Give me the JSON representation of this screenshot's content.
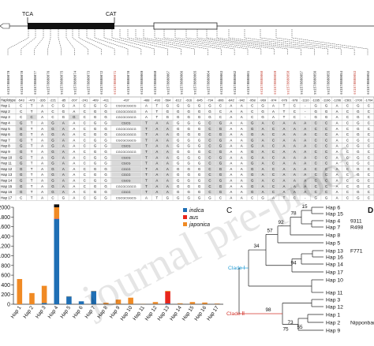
{
  "gene_model": {
    "label_left": "TCA",
    "label_right": "CAT"
  },
  "snp_ids": [
    {
      "id": "ss1578880079",
      "red": false
    },
    {
      "id": "ss1578880078",
      "red": false
    },
    {
      "id": "ss1578880077",
      "red": false
    },
    {
      "id": "ss1578880076",
      "red": false
    },
    {
      "id": "ss1578880075",
      "red": false
    },
    {
      "id": "ss1578880074",
      "red": false
    },
    {
      "id": "ss1578880073",
      "red": false
    },
    {
      "id": "ss1578880072",
      "red": false
    },
    {
      "id": "ss1578880071",
      "red": true
    },
    {
      "id": "ss1578880070",
      "red": false
    },
    {
      "id": "ss1578880069",
      "red": false
    },
    {
      "id": "ss1578880068",
      "red": false
    },
    {
      "id": "ss1578880067",
      "red": false
    },
    {
      "id": "ss1578880066",
      "red": false
    },
    {
      "id": "ss1578880065",
      "red": false
    },
    {
      "id": "ss1578880064",
      "red": false
    },
    {
      "id": "ss1578880063",
      "red": false
    },
    {
      "id": "ss1578880062",
      "red": false
    },
    {
      "id": "ss1578880061",
      "red": false
    },
    {
      "id": "ss1578880060",
      "red": true
    },
    {
      "id": "ss1578880059",
      "red": true
    },
    {
      "id": "ss1578880058",
      "red": true
    },
    {
      "id": "ss1578880057",
      "red": false
    },
    {
      "id": "ss1578880056",
      "red": false
    },
    {
      "id": "ss1578880055",
      "red": false
    },
    {
      "id": "ss1578880054",
      "red": false
    },
    {
      "id": "ss1578880053",
      "red": true
    },
    {
      "id": "ss1578880052",
      "red": false
    }
  ],
  "haplotype_table": {
    "header_label": "Haplotype",
    "positions": [
      "-543",
      "-473",
      "-326",
      "-221",
      "-85",
      "-207",
      "-241",
      "-409",
      "-411",
      "-437",
      "-488",
      "-493",
      "-564",
      "-612",
      "-616",
      "-645",
      "-734",
      "-806",
      "-842",
      "-942",
      "-958",
      "-969",
      "-974",
      "-976",
      "-978",
      "-1110",
      "-1165",
      "-1196",
      "-1206",
      "-1561",
      "-1700",
      "-1704"
    ],
    "rows": [
      {
        "hap": "Hap 1",
        "calls": [
          "C",
          "T",
          "A",
          "C",
          "G",
          "A",
          "C",
          "G",
          "G",
          "CGCGCGGCG",
          "A",
          "T",
          "G",
          "G",
          "G",
          "G",
          "G",
          "C",
          "A",
          "A",
          "C",
          "G",
          "A",
          "T",
          "C",
          "-",
          "G",
          "G",
          "A",
          "C",
          "G",
          "C"
        ]
      },
      {
        "hap": "Hap 2",
        "calls": [
          "C",
          "T",
          "A",
          "C",
          "G",
          "A",
          "C",
          "G",
          "G",
          "CGCGCGGCG",
          "A",
          "T",
          "G",
          "G",
          "G",
          "G",
          "G",
          "C",
          "A",
          "A",
          "C",
          "G",
          "A",
          "T",
          "C",
          "-",
          "G",
          "G",
          "A",
          "C",
          "G",
          "C"
        ]
      },
      {
        "hap": "Hap 3",
        "calls": [
          "C",
          "C",
          "A",
          "C",
          "G",
          "G",
          "C",
          "G",
          "G",
          "CGCGCGGCG",
          "A",
          "T",
          "G",
          "G",
          "G",
          "G",
          "G",
          "C",
          "A",
          "A",
          "C",
          "G",
          "A",
          "T",
          "C",
          "-",
          "G",
          "G",
          "A",
          "C",
          "G",
          "C"
        ]
      },
      {
        "hap": "Hap 4",
        "calls": [
          "G",
          "T",
          "A",
          "G",
          "A",
          "A",
          "C",
          "G",
          "G",
          "CGCG",
          "T",
          "A",
          "A",
          "G",
          "G",
          "G",
          "C",
          "G",
          "A",
          "A",
          "G",
          "A",
          "C",
          "A",
          "A",
          "A",
          "C",
          "C",
          "A",
          "C",
          "G",
          "C"
        ]
      },
      {
        "hap": "Hap 5",
        "calls": [
          "G",
          "T",
          "A",
          "G",
          "A",
          "A",
          "C",
          "G",
          "G",
          "CGCGCGGCG",
          "T",
          "A",
          "A",
          "G",
          "G",
          "G",
          "C",
          "G",
          "A",
          "A",
          "G",
          "A",
          "C",
          "A",
          "A",
          "A",
          "C",
          "C",
          "A",
          "C",
          "G",
          "C"
        ]
      },
      {
        "hap": "Hap 6",
        "calls": [
          "G",
          "T",
          "A",
          "G",
          "A",
          "A",
          "C",
          "G",
          "G",
          "CGCGCGGCG",
          "T",
          "A",
          "A",
          "G",
          "G",
          "G",
          "C",
          "G",
          "A",
          "A",
          "G",
          "A",
          "C",
          "A",
          "A",
          "A",
          "C",
          "C",
          "A",
          "C",
          "G",
          "C"
        ]
      },
      {
        "hap": "Hap 7",
        "calls": [
          "G",
          "T",
          "A",
          "G",
          "A",
          "A",
          "C",
          "G",
          "G",
          "CGCGCGGCG",
          "T",
          "A",
          "A",
          "G",
          "G",
          "G",
          "C",
          "G",
          "A",
          "A",
          "G",
          "A",
          "C",
          "A",
          "A",
          "A",
          "C",
          "C",
          "A",
          "C",
          "G",
          "C"
        ]
      },
      {
        "hap": "Hap 8",
        "calls": [
          "G",
          "T",
          "A",
          "G",
          "A",
          "A",
          "C",
          "G",
          "G",
          "CGCG",
          "T",
          "A",
          "A",
          "G",
          "G",
          "G",
          "C",
          "G",
          "A",
          "A",
          "G",
          "A",
          "C",
          "A",
          "A",
          "A",
          "C",
          "C",
          "A",
          "C",
          "G",
          "C"
        ]
      },
      {
        "hap": "Hap 9",
        "calls": [
          "G",
          "T",
          "A",
          "G",
          "A",
          "A",
          "C",
          "G",
          "G",
          "CGCGCGGCG",
          "T",
          "A",
          "A",
          "G",
          "G",
          "G",
          "C",
          "G",
          "A",
          "A",
          "G",
          "A",
          "C",
          "A",
          "A",
          "A",
          "C",
          "C",
          "A",
          "C",
          "G",
          "C"
        ]
      },
      {
        "hap": "Hap 10",
        "calls": [
          "G",
          "T",
          "A",
          "G",
          "A",
          "A",
          "C",
          "G",
          "G",
          "CGCG",
          "T",
          "A",
          "A",
          "G",
          "G",
          "G",
          "C",
          "G",
          "A",
          "A",
          "G",
          "A",
          "C",
          "A",
          "A",
          "A",
          "C",
          "C",
          "A",
          "C",
          "G",
          "C"
        ]
      },
      {
        "hap": "Hap 11",
        "calls": [
          "G",
          "T",
          "A",
          "G",
          "A",
          "A",
          "C",
          "G",
          "G",
          "CGCG",
          "T",
          "A",
          "A",
          "G",
          "G",
          "G",
          "C",
          "G",
          "A",
          "A",
          "G",
          "A",
          "C",
          "A",
          "A",
          "A",
          "C",
          "C",
          "A",
          "C",
          "G",
          "C"
        ]
      },
      {
        "hap": "Hap 12",
        "calls": [
          "G",
          "T",
          "A",
          "G",
          "A",
          "A",
          "C",
          "G",
          "G",
          "CGCG",
          "T",
          "A",
          "A",
          "G",
          "G",
          "G",
          "C",
          "G",
          "A",
          "A",
          "G",
          "A",
          "C",
          "A",
          "A",
          "A",
          "C",
          "C",
          "A",
          "C",
          "G",
          "C"
        ]
      },
      {
        "hap": "Hap 13",
        "calls": [
          "G",
          "T",
          "A",
          "G",
          "A",
          "A",
          "C",
          "G",
          "G",
          "CGCG",
          "T",
          "A",
          "A",
          "G",
          "G",
          "G",
          "C",
          "G",
          "A",
          "A",
          "G",
          "A",
          "C",
          "A",
          "A",
          "A",
          "C",
          "C",
          "A",
          "C",
          "G",
          "C"
        ]
      },
      {
        "hap": "Hap 14",
        "calls": [
          "G",
          "T",
          "A",
          "G",
          "A",
          "A",
          "C",
          "G",
          "G",
          "CGCG",
          "T",
          "A",
          "A",
          "G",
          "G",
          "G",
          "C",
          "G",
          "A",
          "A",
          "G",
          "A",
          "C",
          "A",
          "A",
          "A",
          "C",
          "C",
          "A",
          "C",
          "G",
          "C"
        ]
      },
      {
        "hap": "Hap 15",
        "calls": [
          "G",
          "T",
          "A",
          "G",
          "A",
          "A",
          "C",
          "G",
          "G",
          "CGCGCGGCG",
          "T",
          "A",
          "A",
          "G",
          "G",
          "G",
          "C",
          "G",
          "A",
          "A",
          "G",
          "A",
          "C",
          "A",
          "A",
          "A",
          "C",
          "C",
          "A",
          "C",
          "G",
          "C"
        ]
      },
      {
        "hap": "Hap 16",
        "calls": [
          "G",
          "T",
          "A",
          "G",
          "A",
          "A",
          "C",
          "G",
          "G",
          "CGCG",
          "T",
          "A",
          "A",
          "G",
          "G",
          "G",
          "C",
          "G",
          "A",
          "A",
          "G",
          "A",
          "C",
          "A",
          "A",
          "A",
          "C",
          "C",
          "A",
          "C",
          "G",
          "C"
        ]
      },
      {
        "hap": "Hap 17",
        "calls": [
          "C",
          "T",
          "A",
          "C",
          "G",
          "A",
          "C",
          "G",
          "G",
          "CGCGCGGCG",
          "A",
          "T",
          "G",
          "G",
          "G",
          "G",
          "G",
          "C",
          "A",
          "A",
          "C",
          "G",
          "A",
          "T",
          "C",
          "-",
          "G",
          "G",
          "A",
          "C",
          "G",
          "C"
        ]
      }
    ]
  },
  "panel_b": {
    "chart_data": {
      "type": "bar",
      "stacked": true,
      "categories": [
        "Hap 1",
        "Hap 2",
        "Hap 3",
        "Hap 4",
        "Hap 5",
        "Hap 6",
        "Hap 7",
        "Hap 8",
        "Hap 9",
        "Hap 10",
        "Hap 11",
        "Hap 12",
        "Hap 13",
        "Hap 14",
        "Hap 15",
        "Hap 16",
        "Hap 17"
      ],
      "series": [
        {
          "name": "indica",
          "color": "#1f6fb5",
          "values": [
            0,
            0,
            25,
            1760,
            160,
            60,
            270,
            5,
            5,
            5,
            5,
            5,
            15,
            5,
            5,
            5,
            5
          ]
        },
        {
          "name": "aus",
          "color": "#e8261c",
          "values": [
            0,
            0,
            0,
            10,
            0,
            0,
            0,
            0,
            0,
            0,
            0,
            0,
            245,
            0,
            0,
            0,
            0
          ]
        },
        {
          "name": "japonica",
          "color": "#f08a24",
          "values": [
            520,
            230,
            355,
            230,
            5,
            0,
            5,
            25,
            90,
            130,
            5,
            40,
            15,
            15,
            40,
            30,
            10
          ]
        }
      ],
      "black_cap": {
        "hap": "Hap 4",
        "value": 60
      },
      "ylim": [
        0,
        2000
      ],
      "yticks": [
        0,
        200,
        400,
        600,
        800,
        1000,
        1200,
        1400,
        1600,
        1800,
        2000
      ],
      "grid": false,
      "legend": "top-right"
    }
  },
  "panel_c": {
    "label": "C",
    "clade1_label": "Clade Ⅰ",
    "clade2_label": "Clade Ⅱ",
    "clade1_color": "#2a9fd6",
    "clade2_color": "#d4342c",
    "leaves": [
      "Hap 6",
      "Hap 15",
      "Hap 4",
      "Hap 7",
      "Hap 8",
      "Hap 5",
      "Hap 13",
      "Hap 16",
      "Hap 14",
      "Hap 17",
      "Hap 10",
      "Hap 11",
      "Hap 3",
      "Hap 12",
      "Hap 1",
      "Hap 2",
      "Hap 9"
    ],
    "leaf_notes": [
      {
        "hap": "Hap 4",
        "note": "9311"
      },
      {
        "hap": "Hap 7",
        "note": "R498"
      },
      {
        "hap": "Hap 13",
        "note": "F771"
      },
      {
        "hap": "Hap 2",
        "note": "Nipponbare"
      }
    ],
    "bootstrap": [
      "15",
      "78",
      "92",
      "57",
      "34",
      "94",
      "98",
      "75",
      "73",
      "55"
    ]
  },
  "partial_label_d": "D",
  "watermark": "journal pre-proof"
}
